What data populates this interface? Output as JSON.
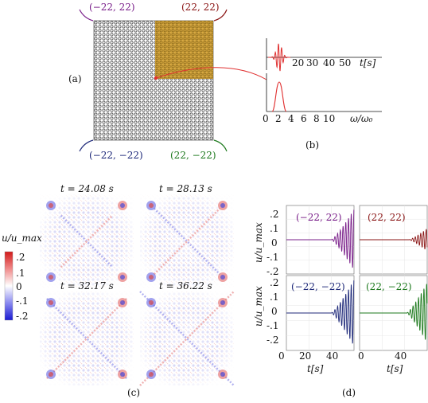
{
  "panels": {
    "a": "(a)",
    "b": "(b)",
    "c": "(c)",
    "d": "(d)"
  },
  "colors": {
    "purple": "#7a1f8a",
    "darkred": "#8a1414",
    "navy": "#1f2a7a",
    "green": "#1e7a1e",
    "signal": "#e03030",
    "highlight": "#d9a32a",
    "lattice": "#333333"
  },
  "lattice": {
    "corners": {
      "top_left": "(−22, 22)",
      "top_right": "(22, 22)",
      "bottom_left": "(−22, −22)",
      "bottom_right": "(22, −22)"
    }
  },
  "panel_b": {
    "time_ticks": [
      "20",
      "30",
      "40",
      "50"
    ],
    "time_label": "t[s]",
    "freq_ticks": [
      "0",
      "2",
      "4",
      "6",
      "8",
      "10"
    ],
    "freq_label": "ω/ω₀"
  },
  "panel_c": {
    "snapshots": [
      {
        "label": "t = 24.08 s",
        "t": 24.08
      },
      {
        "label": "t = 28.13 s",
        "t": 28.13
      },
      {
        "label": "t = 32.17 s",
        "t": 32.17
      },
      {
        "label": "t = 36.22 s",
        "t": 36.22
      }
    ],
    "colorbar": {
      "label": "u/u_max",
      "ticks": [
        ".2",
        ".1",
        "0",
        "-.1",
        "-.2"
      ],
      "range": [
        -0.25,
        0.25
      ]
    }
  },
  "chart_data": [
    {
      "type": "line",
      "panel": "(b) top",
      "xlabel": "t[s]",
      "x_ticks": [
        20,
        30,
        40,
        50
      ],
      "series": [
        {
          "x": [
            0,
            2,
            4,
            6,
            8,
            10,
            12,
            14
          ],
          "y": [
            0,
            0.2,
            -0.6,
            1,
            -0.9,
            0.5,
            -0.2,
            0
          ]
        }
      ]
    },
    {
      "type": "line",
      "panel": "(b) bottom",
      "xlabel": "ω/ω₀",
      "x_ticks": [
        0,
        2,
        4,
        6,
        8,
        10
      ],
      "series": [
        {
          "x": [
            0,
            1.5,
            2,
            2.5,
            4
          ],
          "y": [
            0,
            0.4,
            1,
            0.4,
            0
          ]
        }
      ]
    },
    {
      "type": "line",
      "panel": "(d)",
      "ylabel": "u/u_max",
      "xlabel": "t[s]",
      "y_ticks": [
        ".2",
        ".1",
        "0",
        "-.1",
        "-.2"
      ],
      "x_ticks_labels": [
        "0",
        "20",
        "40"
      ],
      "x_ticks_labels_right": [
        "0",
        "40"
      ],
      "ylim": [
        -0.25,
        0.25
      ],
      "xlim": [
        0,
        60
      ],
      "series": [
        {
          "name": "(−22, 22)",
          "color": "#7a1f8a",
          "onset": 40,
          "amp": 0.22
        },
        {
          "name": "(22, 22)",
          "color": "#8a1414",
          "onset": 44,
          "amp": 0.08
        },
        {
          "name": "(−22, −22)",
          "color": "#1f2a7a",
          "onset": 40,
          "amp": 0.22
        },
        {
          "name": "(22, −22)",
          "color": "#1e7a1e",
          "onset": 42,
          "amp": 0.2
        }
      ]
    }
  ]
}
